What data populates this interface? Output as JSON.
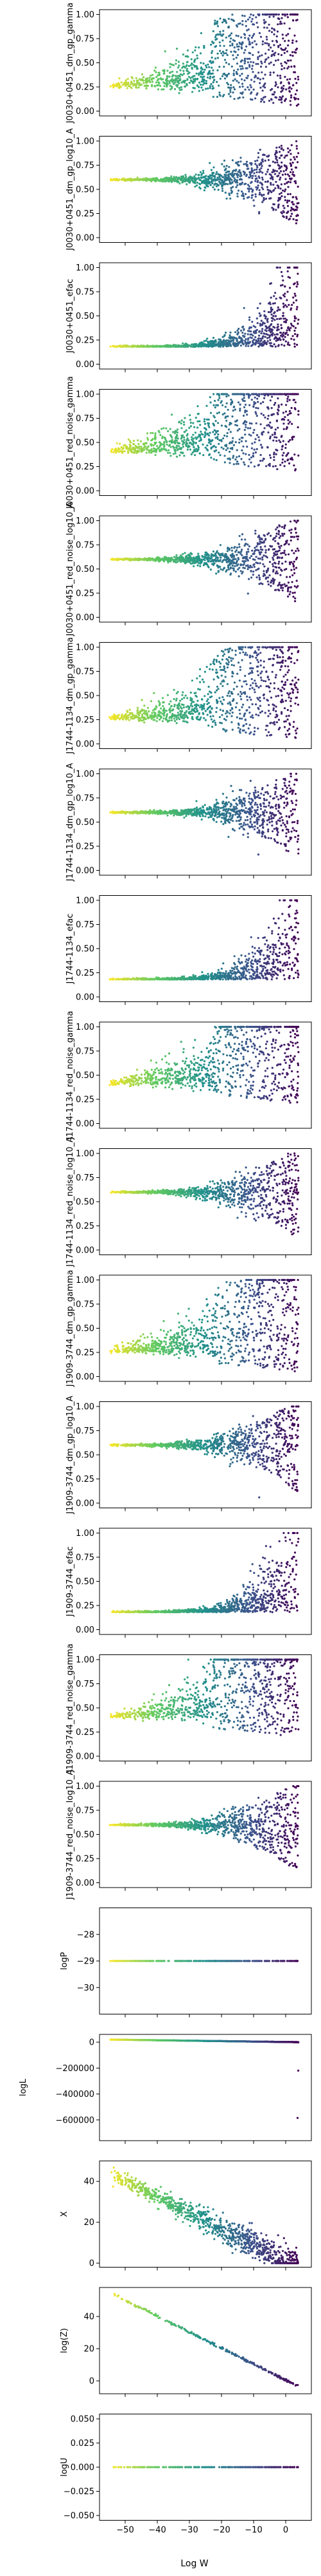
{
  "figure": {
    "xlabel": "Log W",
    "xlim": [
      -58,
      8
    ],
    "xticks": [
      -50,
      -40,
      -30,
      -20,
      -10,
      0
    ],
    "colormap": [
      "#440154",
      "#3b528b",
      "#21918c",
      "#5ec962",
      "#fde725"
    ]
  },
  "chart_data": [
    {
      "type": "scatter",
      "ylabel": "J0030+0451_dm_gp_gamma",
      "ylim": [
        -0.05,
        1.05
      ],
      "yticks": [
        0.0,
        0.25,
        0.5,
        0.75,
        1.0
      ],
      "pattern": "funnel_up",
      "center": 0.25
    },
    {
      "type": "scatter",
      "ylabel": "J0030+0451_dm_gp_log10_A",
      "ylim": [
        -0.05,
        1.05
      ],
      "yticks": [
        0.0,
        0.25,
        0.5,
        0.75,
        1.0
      ],
      "pattern": "trumpet",
      "center": 0.6
    },
    {
      "type": "scatter",
      "ylabel": "J0030+0451_efac",
      "ylim": [
        -0.05,
        1.05
      ],
      "yticks": [
        0.0,
        0.25,
        0.5,
        0.75,
        1.0
      ],
      "pattern": "flare_up",
      "center": 0.18
    },
    {
      "type": "scatter",
      "ylabel": "J0030+0451_red_noise_gamma",
      "ylim": [
        -0.05,
        1.05
      ],
      "yticks": [
        0.0,
        0.25,
        0.5,
        0.75,
        1.0
      ],
      "pattern": "funnel_up",
      "center": 0.4
    },
    {
      "type": "scatter",
      "ylabel": "J0030+0451_red_noise_log10_A",
      "ylim": [
        -0.05,
        1.05
      ],
      "yticks": [
        0.0,
        0.25,
        0.5,
        0.75,
        1.0
      ],
      "pattern": "trumpet",
      "center": 0.6
    },
    {
      "type": "scatter",
      "ylabel": "J1744-1134_dm_gp_gamma",
      "ylim": [
        -0.05,
        1.05
      ],
      "yticks": [
        0.0,
        0.25,
        0.5,
        0.75,
        1.0
      ],
      "pattern": "funnel_up",
      "center": 0.25
    },
    {
      "type": "scatter",
      "ylabel": "J1744-1134_dm_gp_log10_A",
      "ylim": [
        -0.05,
        1.05
      ],
      "yticks": [
        0.0,
        0.25,
        0.5,
        0.75,
        1.0
      ],
      "pattern": "trumpet",
      "center": 0.6
    },
    {
      "type": "scatter",
      "ylabel": "J1744-1134_efac",
      "ylim": [
        -0.05,
        1.05
      ],
      "yticks": [
        0.0,
        0.25,
        0.5,
        0.75,
        1.0
      ],
      "pattern": "flare_up",
      "center": 0.18
    },
    {
      "type": "scatter",
      "ylabel": "J1744-1134_red_noise_gamma",
      "ylim": [
        -0.05,
        1.05
      ],
      "yticks": [
        0.0,
        0.25,
        0.5,
        0.75,
        1.0
      ],
      "pattern": "funnel_up",
      "center": 0.4
    },
    {
      "type": "scatter",
      "ylabel": "J1744-1134_red_noise_log10_A",
      "ylim": [
        -0.05,
        1.05
      ],
      "yticks": [
        0.0,
        0.25,
        0.5,
        0.75,
        1.0
      ],
      "pattern": "trumpet",
      "center": 0.6
    },
    {
      "type": "scatter",
      "ylabel": "J1909-3744_dm_gp_gamma",
      "ylim": [
        -0.05,
        1.05
      ],
      "yticks": [
        0.0,
        0.25,
        0.5,
        0.75,
        1.0
      ],
      "pattern": "funnel_up",
      "center": 0.25
    },
    {
      "type": "scatter",
      "ylabel": "J1909-3744_dm_gp_log10_A",
      "ylim": [
        -0.05,
        1.05
      ],
      "yticks": [
        0.0,
        0.25,
        0.5,
        0.75,
        1.0
      ],
      "pattern": "trumpet",
      "center": 0.6
    },
    {
      "type": "scatter",
      "ylabel": "J1909-3744_efac",
      "ylim": [
        -0.05,
        1.05
      ],
      "yticks": [
        0.0,
        0.25,
        0.5,
        0.75,
        1.0
      ],
      "pattern": "flare_up",
      "center": 0.18
    },
    {
      "type": "scatter",
      "ylabel": "J1909-3744_red_noise_gamma",
      "ylim": [
        -0.05,
        1.05
      ],
      "yticks": [
        0.0,
        0.25,
        0.5,
        0.75,
        1.0
      ],
      "pattern": "funnel_up",
      "center": 0.4
    },
    {
      "type": "scatter",
      "ylabel": "J1909-3744_red_noise_log10_A",
      "ylim": [
        -0.05,
        1.05
      ],
      "yticks": [
        0.0,
        0.25,
        0.5,
        0.75,
        1.0
      ],
      "pattern": "trumpet",
      "center": 0.6
    },
    {
      "type": "scatter",
      "ylabel": "logP",
      "ylim": [
        -31,
        -27
      ],
      "yticks": [
        -30,
        -29,
        -28
      ],
      "pattern": "flat",
      "center": -29
    },
    {
      "type": "scatter",
      "ylabel": "logL",
      "ylim": [
        -760000,
        60000
      ],
      "yticks": [
        -600000,
        -400000,
        -200000,
        0
      ],
      "tick_labels": [
        "−600000",
        "−400000",
        "−200000",
        "0"
      ],
      "pattern": "flat_drop",
      "center": 0
    },
    {
      "type": "scatter",
      "ylabel": "X",
      "ylim": [
        -2,
        50
      ],
      "yticks": [
        0,
        20,
        40
      ],
      "pattern": "band_down",
      "center": 44
    },
    {
      "type": "scatter",
      "ylabel": "log(Z)",
      "ylim": [
        -8,
        58
      ],
      "yticks": [
        0,
        20,
        40
      ],
      "pattern": "line_down",
      "center": 55
    },
    {
      "type": "scatter",
      "ylabel": "logU",
      "ylim": [
        -0.055,
        0.055
      ],
      "yticks": [
        -0.05,
        -0.025,
        0.0,
        0.025,
        0.05
      ],
      "tick_labels": [
        "−0.050",
        "−0.025",
        "0.000",
        "0.025",
        "0.050"
      ],
      "pattern": "flat",
      "center": 0
    }
  ]
}
